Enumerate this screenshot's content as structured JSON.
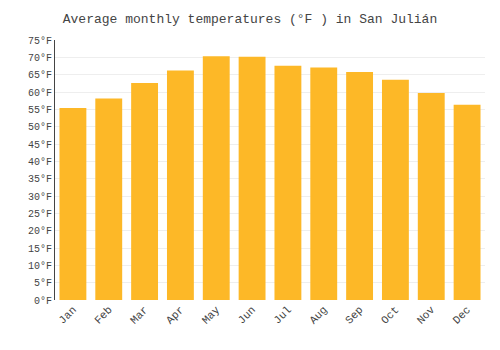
{
  "chart_data": {
    "type": "bar",
    "title": "Average monthly temperatures (°F ) in San Julián",
    "categories": [
      "Jan",
      "Feb",
      "Mar",
      "Apr",
      "May",
      "Jun",
      "Jul",
      "Aug",
      "Sep",
      "Oct",
      "Nov",
      "Dec"
    ],
    "values": [
      55.4,
      58.1,
      62.6,
      66.2,
      70.3,
      70.2,
      67.6,
      67.1,
      65.8,
      63.5,
      59.7,
      56.3
    ],
    "color": "#FDB827",
    "ylim": [
      0,
      75
    ],
    "yticks": [
      {
        "value": 0,
        "label": "0°F"
      },
      {
        "value": 5,
        "label": "5°F"
      },
      {
        "value": 10,
        "label": "10°F"
      },
      {
        "value": 15,
        "label": "15°F"
      },
      {
        "value": 20,
        "label": "20°F"
      },
      {
        "value": 25,
        "label": "25°F"
      },
      {
        "value": 30,
        "label": "30°F"
      },
      {
        "value": 35,
        "label": "35°F"
      },
      {
        "value": 40,
        "label": "40°F"
      },
      {
        "value": 45,
        "label": "45°F"
      },
      {
        "value": 50,
        "label": "50°F"
      },
      {
        "value": 55,
        "label": "55°F"
      },
      {
        "value": 60,
        "label": "60°F"
      },
      {
        "value": 65,
        "label": "65°F"
      },
      {
        "value": 70,
        "label": "70°F"
      },
      {
        "value": 75,
        "label": "75°F"
      }
    ],
    "grid": true
  }
}
